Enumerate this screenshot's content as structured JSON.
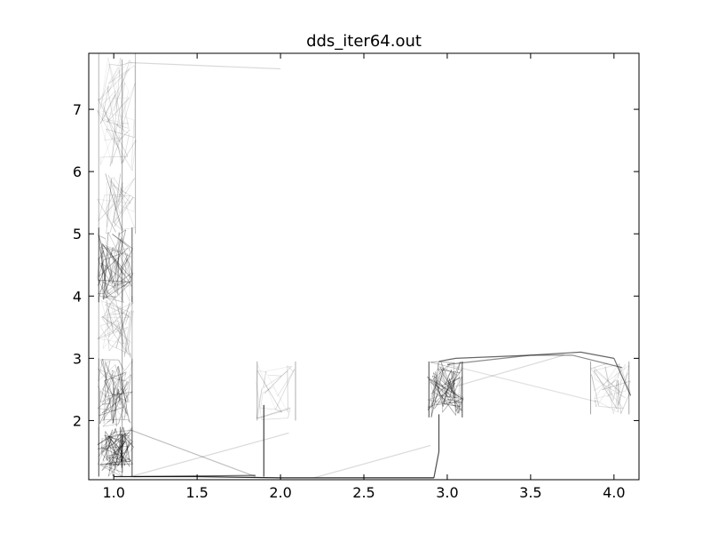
{
  "chart_data": {
    "type": "line",
    "title": "dds_iter64.out",
    "xlabel": "",
    "ylabel": "",
    "xlim": [
      0.85,
      4.15
    ],
    "ylim": [
      1.05,
      7.9
    ],
    "grid": false,
    "legend": "none",
    "line_color": "#000000",
    "xticks": [
      1.0,
      1.5,
      2.0,
      2.5,
      3.0,
      3.5,
      4.0
    ],
    "xtick_labels": [
      "1.0",
      "1.5",
      "2.0",
      "2.5",
      "3.0",
      "3.5",
      "4.0"
    ],
    "yticks": [
      2,
      3,
      4,
      5,
      6,
      7
    ],
    "ytick_labels": [
      "2",
      "3",
      "4",
      "5",
      "6",
      "7"
    ],
    "series": [
      {
        "clusters": [
          {
            "x": [
              0.9,
              1.12
            ],
            "y": [
              1.1,
              1.9
            ],
            "count": 90,
            "alpha": 0.45
          },
          {
            "x": [
              0.9,
              1.12
            ],
            "y": [
              1.9,
              3.0
            ],
            "count": 80,
            "alpha": 0.35
          },
          {
            "x": [
              0.9,
              1.12
            ],
            "y": [
              3.0,
              4.0
            ],
            "count": 50,
            "alpha": 0.18
          },
          {
            "x": [
              0.9,
              1.12
            ],
            "y": [
              3.9,
              5.1
            ],
            "count": 80,
            "alpha": 0.4
          },
          {
            "x": [
              0.9,
              1.14
            ],
            "y": [
              5.0,
              6.0
            ],
            "count": 45,
            "alpha": 0.18
          },
          {
            "x": [
              0.9,
              1.14
            ],
            "y": [
              6.0,
              7.9
            ],
            "count": 55,
            "alpha": 0.18
          },
          {
            "x": [
              1.85,
              2.1
            ],
            "y": [
              2.0,
              2.95
            ],
            "count": 28,
            "alpha": 0.2
          },
          {
            "x": [
              2.88,
              3.1
            ],
            "y": [
              2.05,
              2.95
            ],
            "count": 80,
            "alpha": 0.45
          },
          {
            "x": [
              3.85,
              4.1
            ],
            "y": [
              2.1,
              2.95
            ],
            "count": 35,
            "alpha": 0.22
          }
        ],
        "paths": [
          {
            "x": [
              1.0,
              1.5,
              2.0,
              2.5,
              2.92
            ],
            "y": [
              1.1,
              1.1,
              1.08,
              1.08,
              1.08
            ],
            "alpha": 0.85
          },
          {
            "x": [
              1.12,
              1.85
            ],
            "y": [
              1.1,
              1.12
            ],
            "alpha": 0.6
          },
          {
            "x": [
              1.9,
              1.9
            ],
            "y": [
              1.1,
              2.25
            ],
            "alpha": 0.75
          },
          {
            "x": [
              2.92,
              2.95,
              2.95
            ],
            "y": [
              1.08,
              1.5,
              2.1
            ],
            "alpha": 0.7
          },
          {
            "x": [
              2.95,
              3.05,
              3.5,
              3.8,
              4.0
            ],
            "y": [
              2.95,
              3.0,
              3.05,
              3.1,
              3.0
            ],
            "alpha": 0.6
          },
          {
            "x": [
              3.0,
              3.5,
              3.75,
              4.05
            ],
            "y": [
              2.9,
              3.05,
              3.05,
              2.85
            ],
            "alpha": 0.45
          },
          {
            "x": [
              1.1,
              1.85
            ],
            "y": [
              1.85,
              1.1
            ],
            "alpha": 0.25
          },
          {
            "x": [
              1.1,
              2.05
            ],
            "y": [
              1.1,
              1.8
            ],
            "alpha": 0.15
          },
          {
            "x": [
              2.2,
              2.9
            ],
            "y": [
              1.08,
              1.6
            ],
            "alpha": 0.15
          },
          {
            "x": [
              1.1,
              2.0
            ],
            "y": [
              7.75,
              7.65
            ],
            "alpha": 0.15
          },
          {
            "x": [
              3.05,
              3.7
            ],
            "y": [
              2.55,
              3.05
            ],
            "alpha": 0.15
          },
          {
            "x": [
              3.0,
              3.9
            ],
            "y": [
              2.9,
              2.3
            ],
            "alpha": 0.12
          },
          {
            "x": [
              1.05,
              1.05
            ],
            "y": [
              1.1,
              7.8
            ],
            "alpha": 0.3
          },
          {
            "x": [
              4.0,
              4.1
            ],
            "y": [
              3.0,
              2.4
            ],
            "alpha": 0.55
          }
        ]
      }
    ]
  }
}
